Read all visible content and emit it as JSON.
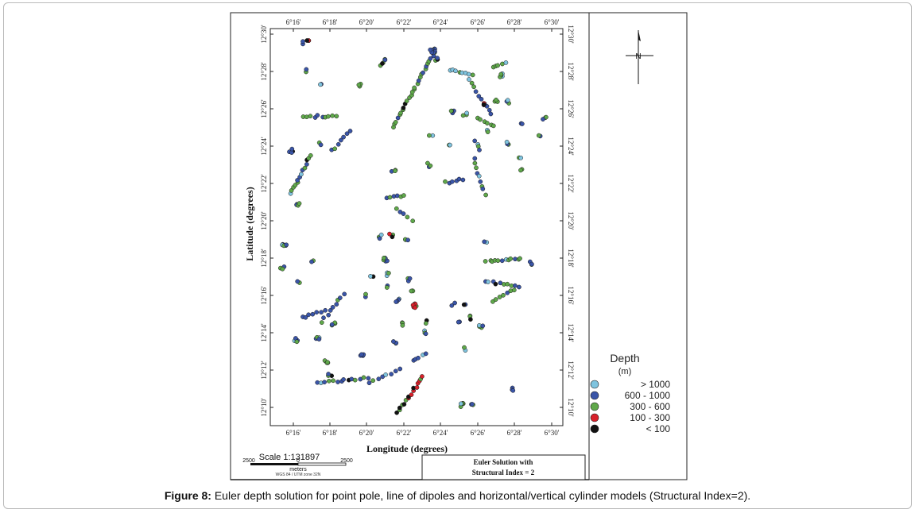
{
  "map": {
    "lon_ticks": [
      "6°16'",
      "6°18'",
      "6°20'",
      "6°22'",
      "6°24'",
      "6°26'",
      "6°28'",
      "6°30'"
    ],
    "lat_ticks": [
      "12°30'",
      "12°28'",
      "12°26'",
      "12°24'",
      "12°22'",
      "12°20'",
      "12°18'",
      "12°16'",
      "12°14'",
      "12°12'",
      "12°10'"
    ],
    "xlabel": "Longitude (degrees)",
    "ylabel": "Latitude (degrees)",
    "north_label": "N"
  },
  "scale": {
    "title": "Scale 1:131897",
    "left_value": "2500",
    "right_value": "2500",
    "zero": "0",
    "unit": "meters",
    "projection": "WGS 84 / UTM zone 32N"
  },
  "title_box": {
    "line1": "Euler Solution with",
    "line2": "Structural Index = 2"
  },
  "legend": {
    "title": "Depth",
    "unit": "(m)",
    "items": [
      {
        "label": ">  1000",
        "color": "#7fc4df"
      },
      {
        "label": "600  -  1000",
        "color": "#3a55a8"
      },
      {
        "label": "300  -  600",
        "color": "#5fa84a"
      },
      {
        "label": "100  -  300",
        "color": "#d8202a"
      },
      {
        "label": "<  100",
        "color": "#111111"
      }
    ]
  },
  "caption": {
    "label": "Figure 8:",
    "text": " Euler depth solution for point pole, line of dipoles and horizontal/vertical cylinder models (Structural Index=2)."
  }
}
